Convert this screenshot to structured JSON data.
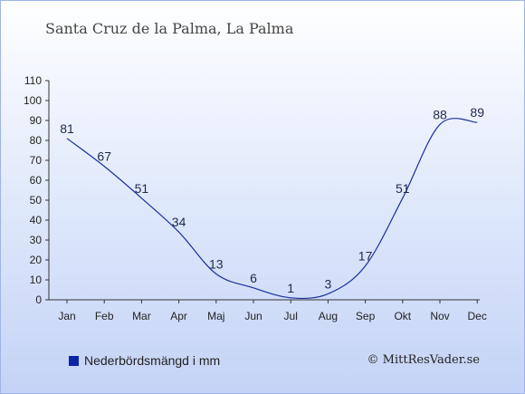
{
  "header": {
    "title": "Santa Cruz de la Palma, La Palma"
  },
  "legend": {
    "label": "Nederbördsmängd i mm",
    "swatch_color": "#0b24a8"
  },
  "footer": {
    "credit": "© MittResVader.se"
  },
  "chart_data": {
    "type": "line",
    "title": "Santa Cruz de la Palma, La Palma",
    "xlabel": "",
    "ylabel": "",
    "categories": [
      "Jan",
      "Feb",
      "Mar",
      "Apr",
      "Maj",
      "Jun",
      "Jul",
      "Aug",
      "Sep",
      "Okt",
      "Nov",
      "Dec"
    ],
    "series": [
      {
        "name": "Nederbördsmängd i mm",
        "values": [
          81,
          67,
          51,
          34,
          13,
          6,
          1,
          3,
          17,
          51,
          88,
          89
        ],
        "color": "#1a2f9c"
      }
    ],
    "yticks": [
      0,
      10,
      20,
      30,
      40,
      50,
      60,
      70,
      80,
      90,
      100,
      110
    ],
    "ylim": [
      0,
      110
    ],
    "data_labels": true,
    "grid": false,
    "legend_position": "bottom-left"
  }
}
